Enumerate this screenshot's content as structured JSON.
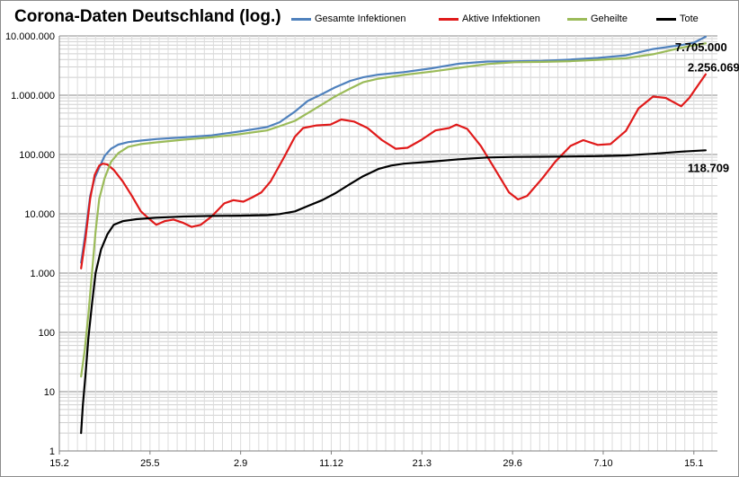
{
  "chart_data": {
    "type": "line",
    "title": "Corona-Daten Deutschland (log.)",
    "xlabel": "",
    "ylabel": "",
    "y_scale": "log",
    "ylim": [
      1,
      10000000
    ],
    "grid": true,
    "legend_position": "top",
    "x_ticks": [
      "15.2",
      "25.5",
      "2.9",
      "11.12",
      "21.3",
      "29.6",
      "7.10",
      "15.1"
    ],
    "y_ticks": [
      "1",
      "10",
      "100",
      "1.000",
      "10.000",
      "100.000",
      "1.000.000",
      "10.000.000"
    ],
    "y_tick_values": [
      1,
      10,
      100,
      1000,
      10000,
      100000,
      1000000,
      10000000
    ],
    "series": [
      {
        "name": "Gesamte Infektionen",
        "color": "#4f81bd",
        "points": [
          [
            "2020-03-10",
            1500
          ],
          [
            "2020-03-15",
            5000
          ],
          [
            "2020-03-20",
            20000
          ],
          [
            "2020-03-25",
            40000
          ],
          [
            "2020-03-30",
            60000
          ],
          [
            "2020-04-05",
            95000
          ],
          [
            "2020-04-12",
            125000
          ],
          [
            "2020-04-20",
            147000
          ],
          [
            "2020-05-01",
            162000
          ],
          [
            "2020-05-15",
            172000
          ],
          [
            "2020-06-01",
            182000
          ],
          [
            "2020-07-01",
            195000
          ],
          [
            "2020-08-01",
            210000
          ],
          [
            "2020-09-01",
            245000
          ],
          [
            "2020-10-01",
            290000
          ],
          [
            "2020-10-15",
            350000
          ],
          [
            "2020-11-01",
            530000
          ],
          [
            "2020-11-15",
            800000
          ],
          [
            "2020-12-01",
            1050000
          ],
          [
            "2020-12-15",
            1350000
          ],
          [
            "2021-01-01",
            1750000
          ],
          [
            "2021-01-15",
            2000000
          ],
          [
            "2021-02-01",
            2220000
          ],
          [
            "2021-03-01",
            2450000
          ],
          [
            "2021-04-01",
            2850000
          ],
          [
            "2021-04-15",
            3100000
          ],
          [
            "2021-05-01",
            3400000
          ],
          [
            "2021-06-01",
            3700000
          ],
          [
            "2021-07-01",
            3740000
          ],
          [
            "2021-08-01",
            3800000
          ],
          [
            "2021-09-01",
            4000000
          ],
          [
            "2021-10-01",
            4250000
          ],
          [
            "2021-11-01",
            4700000
          ],
          [
            "2021-12-01",
            6000000
          ],
          [
            "2022-01-01",
            7000000
          ],
          [
            "2022-01-15",
            7705000
          ],
          [
            "2022-01-28",
            9700000
          ]
        ]
      },
      {
        "name": "Aktive Infektionen",
        "color": "#e01a1a",
        "points": [
          [
            "2020-03-10",
            1200
          ],
          [
            "2020-03-15",
            4000
          ],
          [
            "2020-03-20",
            18000
          ],
          [
            "2020-03-25",
            45000
          ],
          [
            "2020-03-30",
            65000
          ],
          [
            "2020-04-03",
            70000
          ],
          [
            "2020-04-08",
            68000
          ],
          [
            "2020-04-15",
            55000
          ],
          [
            "2020-04-25",
            35000
          ],
          [
            "2020-05-05",
            20000
          ],
          [
            "2020-05-15",
            11000
          ],
          [
            "2020-05-25",
            8000
          ],
          [
            "2020-06-01",
            6500
          ],
          [
            "2020-06-10",
            7500
          ],
          [
            "2020-06-20",
            8000
          ],
          [
            "2020-07-01",
            7000
          ],
          [
            "2020-07-10",
            6000
          ],
          [
            "2020-07-20",
            6500
          ],
          [
            "2020-08-01",
            9000
          ],
          [
            "2020-08-15",
            15000
          ],
          [
            "2020-08-25",
            17000
          ],
          [
            "2020-09-05",
            16000
          ],
          [
            "2020-09-15",
            19000
          ],
          [
            "2020-09-25",
            23000
          ],
          [
            "2020-10-05",
            35000
          ],
          [
            "2020-10-20",
            90000
          ],
          [
            "2020-11-01",
            200000
          ],
          [
            "2020-11-10",
            280000
          ],
          [
            "2020-11-25",
            310000
          ],
          [
            "2020-12-10",
            320000
          ],
          [
            "2020-12-22",
            390000
          ],
          [
            "2021-01-05",
            360000
          ],
          [
            "2021-01-20",
            280000
          ],
          [
            "2021-02-05",
            175000
          ],
          [
            "2021-02-20",
            125000
          ],
          [
            "2021-03-05",
            130000
          ],
          [
            "2021-03-20",
            175000
          ],
          [
            "2021-04-05",
            255000
          ],
          [
            "2021-04-20",
            280000
          ],
          [
            "2021-04-28",
            320000
          ],
          [
            "2021-05-10",
            270000
          ],
          [
            "2021-05-25",
            140000
          ],
          [
            "2021-06-10",
            55000
          ],
          [
            "2021-06-25",
            23000
          ],
          [
            "2021-07-05",
            17500
          ],
          [
            "2021-07-15",
            20000
          ],
          [
            "2021-08-01",
            40000
          ],
          [
            "2021-08-15",
            75000
          ],
          [
            "2021-09-01",
            140000
          ],
          [
            "2021-09-15",
            175000
          ],
          [
            "2021-10-01",
            145000
          ],
          [
            "2021-10-15",
            150000
          ],
          [
            "2021-11-01",
            250000
          ],
          [
            "2021-11-15",
            600000
          ],
          [
            "2021-12-01",
            950000
          ],
          [
            "2021-12-15",
            900000
          ],
          [
            "2022-01-01",
            650000
          ],
          [
            "2022-01-10",
            900000
          ],
          [
            "2022-01-20",
            1500000
          ],
          [
            "2022-01-28",
            2256069
          ]
        ]
      },
      {
        "name": "Geheilte",
        "color": "#9bbb59",
        "points": [
          [
            "2020-03-10",
            18
          ],
          [
            "2020-03-14",
            50
          ],
          [
            "2020-03-18",
            200
          ],
          [
            "2020-03-22",
            1000
          ],
          [
            "2020-03-26",
            5000
          ],
          [
            "2020-03-30",
            18000
          ],
          [
            "2020-04-05",
            40000
          ],
          [
            "2020-04-12",
            75000
          ],
          [
            "2020-04-20",
            105000
          ],
          [
            "2020-05-01",
            135000
          ],
          [
            "2020-05-15",
            150000
          ],
          [
            "2020-06-01",
            160000
          ],
          [
            "2020-07-01",
            178000
          ],
          [
            "2020-08-01",
            195000
          ],
          [
            "2020-09-01",
            220000
          ],
          [
            "2020-10-01",
            255000
          ],
          [
            "2020-10-15",
            300000
          ],
          [
            "2020-11-01",
            370000
          ],
          [
            "2020-11-15",
            500000
          ],
          [
            "2020-12-01",
            700000
          ],
          [
            "2020-12-15",
            950000
          ],
          [
            "2021-01-01",
            1300000
          ],
          [
            "2021-01-15",
            1650000
          ],
          [
            "2021-02-01",
            1900000
          ],
          [
            "2021-03-01",
            2200000
          ],
          [
            "2021-04-01",
            2500000
          ],
          [
            "2021-05-01",
            2900000
          ],
          [
            "2021-06-01",
            3350000
          ],
          [
            "2021-07-01",
            3600000
          ],
          [
            "2021-08-01",
            3650000
          ],
          [
            "2021-09-01",
            3750000
          ],
          [
            "2021-10-01",
            3950000
          ],
          [
            "2021-11-01",
            4200000
          ],
          [
            "2021-12-01",
            4900000
          ],
          [
            "2022-01-01",
            6300000
          ],
          [
            "2022-01-28",
            7500000
          ]
        ]
      },
      {
        "name": "Tote",
        "color": "#000000",
        "points": [
          [
            "2020-03-10",
            2
          ],
          [
            "2020-03-12",
            6
          ],
          [
            "2020-03-15",
            20
          ],
          [
            "2020-03-18",
            80
          ],
          [
            "2020-03-22",
            300
          ],
          [
            "2020-03-26",
            1000
          ],
          [
            "2020-04-01",
            2500
          ],
          [
            "2020-04-08",
            4500
          ],
          [
            "2020-04-15",
            6500
          ],
          [
            "2020-04-25",
            7500
          ],
          [
            "2020-05-10",
            8100
          ],
          [
            "2020-06-01",
            8600
          ],
          [
            "2020-07-01",
            9000
          ],
          [
            "2020-08-01",
            9200
          ],
          [
            "2020-09-01",
            9300
          ],
          [
            "2020-10-01",
            9500
          ],
          [
            "2020-10-15",
            9900
          ],
          [
            "2020-11-01",
            11000
          ],
          [
            "2020-11-15",
            13500
          ],
          [
            "2020-12-01",
            17000
          ],
          [
            "2020-12-15",
            22000
          ],
          [
            "2021-01-01",
            32000
          ],
          [
            "2021-01-15",
            43000
          ],
          [
            "2021-02-01",
            57000
          ],
          [
            "2021-02-15",
            65000
          ],
          [
            "2021-03-01",
            70000
          ],
          [
            "2021-04-01",
            76000
          ],
          [
            "2021-05-01",
            83000
          ],
          [
            "2021-06-01",
            89000
          ],
          [
            "2021-07-01",
            91000
          ],
          [
            "2021-08-01",
            91700
          ],
          [
            "2021-09-01",
            92500
          ],
          [
            "2021-10-01",
            94000
          ],
          [
            "2021-11-01",
            96500
          ],
          [
            "2021-12-01",
            103000
          ],
          [
            "2022-01-01",
            112000
          ],
          [
            "2022-01-28",
            118000
          ]
        ]
      }
    ],
    "annotations": [
      {
        "label": "7.705.000",
        "series": "Gesamte Infektionen"
      },
      {
        "label": "2.256.069",
        "series": "Aktive Infektionen"
      },
      {
        "label": "118.709",
        "series": "Tote"
      }
    ]
  }
}
